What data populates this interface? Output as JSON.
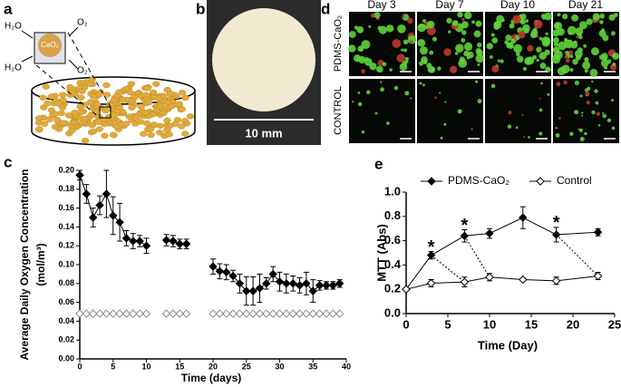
{
  "panel_labels": [
    "a",
    "b",
    "c",
    "d",
    "e"
  ],
  "panel_a": {
    "labels": [
      "H₂O",
      "O₂",
      "CaO₂",
      "H₂O",
      "O₂"
    ]
  },
  "panel_b": {
    "scale_label": "10 mm"
  },
  "panel_d": {
    "columns": [
      "Day 3",
      "Day 7",
      "Day 10",
      "Day 21"
    ],
    "rows": [
      "PDMS-CaO₂",
      "CONTROL"
    ]
  },
  "chart_data": [
    {
      "type": "line",
      "xlabel": "Time (days)",
      "ylabel": [
        "Average Daily Oxygen Concentration",
        "(mol/m³)"
      ],
      "x": [
        0,
        1,
        2,
        3,
        4,
        5,
        6,
        7,
        8,
        9,
        10,
        11,
        12,
        13,
        14,
        15,
        16,
        17,
        18,
        19,
        20,
        21,
        22,
        23,
        24,
        25,
        26,
        27,
        28,
        29,
        30,
        31,
        32,
        33,
        34,
        35,
        36,
        37,
        38,
        39
      ],
      "xlim": [
        0,
        40
      ],
      "xticks": [
        0,
        5,
        10,
        15,
        20,
        25,
        30,
        35,
        40
      ],
      "ylim": [
        0,
        0.2
      ],
      "yticks": [
        {
          "value": 0,
          "label": "0.00"
        },
        {
          "value": 0.02,
          "label": "0.02"
        },
        {
          "value": 0.04,
          "label": "0.04"
        },
        {
          "value": 0.06,
          "label": "0.06"
        },
        {
          "value": 0.08,
          "label": "0.08"
        },
        {
          "value": 0.1,
          "label": "0.10"
        },
        {
          "value": 0.12,
          "label": "0.12"
        },
        {
          "value": 0.14,
          "label": "0.14"
        },
        {
          "value": 0.16,
          "label": "0.16"
        },
        {
          "value": 0.18,
          "label": "0.18"
        },
        {
          "value": 0.2,
          "label": "0.20"
        }
      ],
      "series": [
        {
          "color": "#000000",
          "marker_fill": "#000000",
          "line": true,
          "values": [
            0.195,
            0.175,
            0.15,
            0.163,
            0.175,
            0.152,
            0.145,
            0.128,
            0.125,
            0.125,
            0.12,
            null,
            null,
            0.126,
            0.125,
            0.122,
            0.122,
            null,
            null,
            null,
            0.098,
            0.093,
            0.092,
            0.088,
            0.08,
            0.072,
            0.072,
            0.075,
            0.08,
            0.09,
            0.082,
            0.08,
            0.08,
            0.078,
            0.08,
            0.072,
            0.078,
            0.078,
            0.078,
            0.08
          ],
          "errors": [
            0.005,
            0.01,
            0.01,
            0.01,
            0.025,
            0.02,
            0.02,
            0.008,
            0.008,
            0.006,
            0.008,
            null,
            null,
            0.006,
            0.006,
            0.005,
            0.005,
            null,
            null,
            null,
            0.008,
            0.008,
            0.008,
            0.006,
            0.01,
            0.015,
            0.015,
            0.015,
            0.006,
            0.008,
            0.01,
            0.01,
            0.008,
            0.008,
            0.012,
            0.012,
            0.005,
            0.004,
            0.004,
            0.004
          ]
        },
        {
          "color": "#888888",
          "marker_fill": "#ffffff",
          "line": false,
          "values": [
            0.048,
            0.048,
            0.048,
            0.048,
            0.048,
            0.048,
            0.048,
            0.048,
            0.048,
            0.048,
            0.048,
            null,
            null,
            0.048,
            0.048,
            0.048,
            0.048,
            null,
            null,
            null,
            0.048,
            0.048,
            0.048,
            0.048,
            0.048,
            0.048,
            0.048,
            0.048,
            0.048,
            0.048,
            0.048,
            0.048,
            0.048,
            0.048,
            0.048,
            0.048,
            0.048,
            0.048,
            0.048,
            0.048
          ]
        }
      ]
    },
    {
      "type": "line",
      "xlabel": "Time (Day)",
      "ylabel": [
        "MTT (Abs)"
      ],
      "x": [
        0,
        3,
        7,
        10,
        14,
        18,
        23
      ],
      "xlim": [
        0,
        25
      ],
      "xticks": [
        0,
        5,
        10,
        15,
        20,
        25
      ],
      "ylim": [
        0,
        1
      ],
      "yticks": [
        {
          "value": 0,
          "label": "0.0"
        },
        {
          "value": 0.2,
          "label": "0.2"
        },
        {
          "value": 0.4,
          "label": "0.4"
        },
        {
          "value": 0.6,
          "label": "0.6"
        },
        {
          "value": 0.8,
          "label": "0.8"
        },
        {
          "value": 1,
          "label": "1.0"
        }
      ],
      "legend": "top",
      "series": [
        {
          "name": "PDMS-CaO₂",
          "color": "#000000",
          "marker_fill": "#000000",
          "line": true,
          "values": [
            0.2,
            0.48,
            0.64,
            0.66,
            0.79,
            0.65,
            0.67
          ],
          "errors": [
            0.01,
            0.03,
            0.05,
            0.04,
            0.09,
            0.06,
            0.03
          ]
        },
        {
          "name": "Control",
          "color": "#000000",
          "marker_fill": "#ffffff",
          "line": true,
          "values": [
            0.2,
            0.25,
            0.26,
            0.3,
            0.28,
            0.27,
            0.31
          ],
          "errors": [
            0.01,
            0.03,
            0.04,
            0.03,
            0.01,
            0.03,
            0.03
          ]
        }
      ],
      "annotations": [
        {
          "text": "*",
          "x": 3
        },
        {
          "text": "*",
          "x": 7
        },
        {
          "text": "*",
          "x": 18
        }
      ]
    }
  ]
}
